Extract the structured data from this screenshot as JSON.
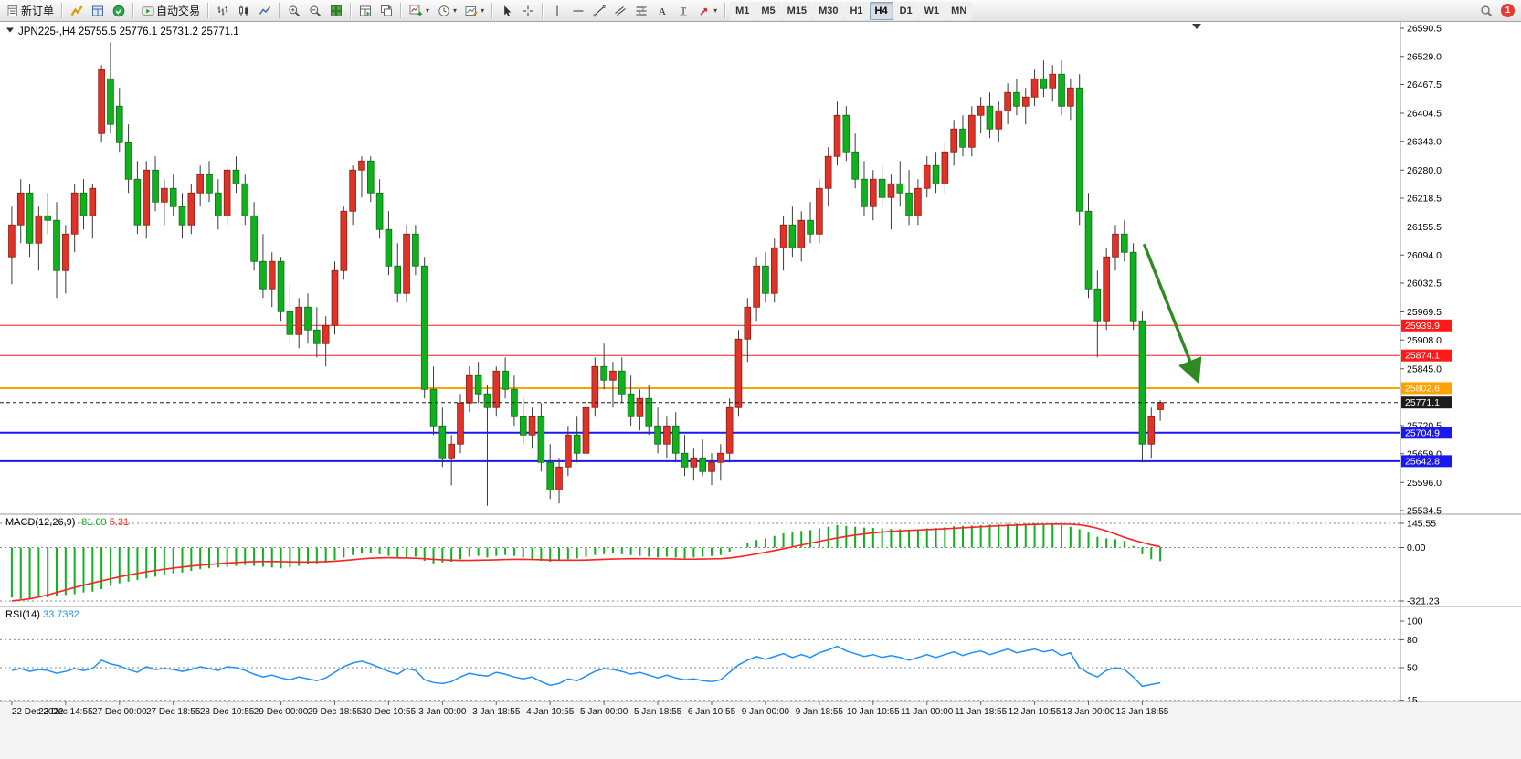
{
  "toolbar": {
    "new_order_label": "新订单",
    "autotrading_label": "自动交易",
    "timeframes": [
      "M1",
      "M5",
      "M15",
      "M30",
      "H1",
      "H4",
      "D1",
      "W1",
      "MN"
    ],
    "active_timeframe": "H4",
    "notification_count": "1",
    "icons": [
      "new-order",
      "market-watch",
      "data-window",
      "community",
      "autotrading",
      "bar-chart",
      "candlestick-chart",
      "line-chart",
      "zoom-in",
      "zoom-out",
      "tile-windows",
      "arrange-windows",
      "cascade-windows",
      "add-indicator",
      "periods",
      "templates",
      "cursor",
      "crosshair",
      "vertical-line",
      "horizontal-line",
      "trendline",
      "equidistant-channel",
      "fibonacci",
      "text",
      "text-label",
      "arrows",
      "search",
      "notification"
    ]
  },
  "chart_data": {
    "type": "candlestick+indicators",
    "symbol": "JPN225-",
    "period": "H4",
    "title_text": "JPN225-,H4 25755.5 25776.1 25731.2 25771.1",
    "ohlc": {
      "open": "25755.5",
      "high": "25776.1",
      "low": "25731.2",
      "close": "25771.1"
    },
    "colors": {
      "bull": "#dd3328",
      "bear": "#11b01e",
      "wick": "#3a3a3a",
      "macd_hist": "#11b01e",
      "macd_signal": "#ff2121",
      "rsi_line": "#1e90ff",
      "current_price": "#1c1c1c"
    },
    "price_axis": {
      "max": 26590.5,
      "min": 25534.5,
      "labels": [
        "26590.5",
        "26529.0",
        "26467.5",
        "26404.5",
        "26343.0",
        "26280.0",
        "26218.5",
        "26155.5",
        "26094.0",
        "26032.5",
        "25969.5",
        "25908.0",
        "25845.0",
        "25720.5",
        "25659.0",
        "25596.0",
        "25534.5"
      ]
    },
    "hlines": [
      {
        "price": 25939.9,
        "label": "25939.9",
        "color": "#ff1a1a",
        "width": 1
      },
      {
        "price": 25874.1,
        "label": "25874.1",
        "color": "#ff1a1a",
        "width": 1
      },
      {
        "price": 25802.6,
        "label": "25802.6",
        "color": "#ffa200",
        "width": 2
      },
      {
        "price": 25704.9,
        "label": "25704.9",
        "color": "#1a1aee",
        "width": 2
      },
      {
        "price": 25642.8,
        "label": "25642.8",
        "color": "#1a1aee",
        "width": 2
      }
    ],
    "current_price": {
      "value": 25771.1,
      "label": "25771.1"
    },
    "arrow": {
      "from_bar": 126.2,
      "from_price": 26118,
      "to_bar": 132.2,
      "to_price": 25818,
      "color": "#2e8b22"
    },
    "candles": [
      [
        26090,
        26200,
        26030,
        26160
      ],
      [
        26160,
        26260,
        26120,
        26230
      ],
      [
        26230,
        26250,
        26090,
        26120
      ],
      [
        26120,
        26200,
        26060,
        26180
      ],
      [
        26180,
        26230,
        26140,
        26170
      ],
      [
        26170,
        26210,
        26000,
        26060
      ],
      [
        26060,
        26160,
        26010,
        26140
      ],
      [
        26140,
        26250,
        26100,
        26230
      ],
      [
        26230,
        26260,
        26150,
        26180
      ],
      [
        26180,
        26250,
        26130,
        26240
      ],
      [
        26360,
        26510,
        26340,
        26500
      ],
      [
        26480,
        26560,
        26360,
        26380
      ],
      [
        26420,
        26460,
        26320,
        26340
      ],
      [
        26340,
        26380,
        26230,
        26260
      ],
      [
        26260,
        26300,
        26140,
        26160
      ],
      [
        26160,
        26300,
        26130,
        26280
      ],
      [
        26280,
        26310,
        26190,
        26210
      ],
      [
        26210,
        26260,
        26160,
        26240
      ],
      [
        26240,
        26270,
        26180,
        26200
      ],
      [
        26200,
        26230,
        26130,
        26160
      ],
      [
        26160,
        26250,
        26140,
        26230
      ],
      [
        26230,
        26290,
        26200,
        26270
      ],
      [
        26270,
        26300,
        26210,
        26230
      ],
      [
        26230,
        26260,
        26150,
        26180
      ],
      [
        26180,
        26290,
        26160,
        26280
      ],
      [
        26280,
        26310,
        26230,
        26250
      ],
      [
        26250,
        26270,
        26160,
        26180
      ],
      [
        26180,
        26210,
        26060,
        26080
      ],
      [
        26080,
        26140,
        26000,
        26020
      ],
      [
        26020,
        26100,
        25980,
        26080
      ],
      [
        26080,
        26090,
        25950,
        25970
      ],
      [
        25970,
        26030,
        25900,
        25920
      ],
      [
        25920,
        26000,
        25890,
        25980
      ],
      [
        25980,
        26010,
        25900,
        25930
      ],
      [
        25930,
        25980,
        25870,
        25900
      ],
      [
        25900,
        25960,
        25850,
        25940
      ],
      [
        25940,
        26080,
        25920,
        26060
      ],
      [
        26060,
        26200,
        26040,
        26190
      ],
      [
        26190,
        26290,
        26160,
        26280
      ],
      [
        26280,
        26310,
        26220,
        26300
      ],
      [
        26300,
        26310,
        26210,
        26230
      ],
      [
        26230,
        26260,
        26130,
        26150
      ],
      [
        26150,
        26190,
        26050,
        26070
      ],
      [
        26070,
        26120,
        25990,
        26010
      ],
      [
        26010,
        26160,
        25990,
        26140
      ],
      [
        26140,
        26160,
        26050,
        26070
      ],
      [
        26070,
        26090,
        25780,
        25800
      ],
      [
        25800,
        25850,
        25700,
        25720
      ],
      [
        25720,
        25760,
        25630,
        25650
      ],
      [
        25650,
        25700,
        25590,
        25680
      ],
      [
        25680,
        25790,
        25660,
        25770
      ],
      [
        25770,
        25850,
        25750,
        25830
      ],
      [
        25830,
        25860,
        25770,
        25790
      ],
      [
        25790,
        25810,
        25545,
        25760
      ],
      [
        25760,
        25850,
        25740,
        25840
      ],
      [
        25840,
        25870,
        25780,
        25800
      ],
      [
        25800,
        25830,
        25720,
        25740
      ],
      [
        25740,
        25780,
        25680,
        25700
      ],
      [
        25700,
        25760,
        25670,
        25740
      ],
      [
        25740,
        25770,
        25620,
        25640
      ],
      [
        25640,
        25680,
        25560,
        25580
      ],
      [
        25580,
        25650,
        25550,
        25630
      ],
      [
        25630,
        25720,
        25610,
        25700
      ],
      [
        25700,
        25740,
        25640,
        25660
      ],
      [
        25660,
        25780,
        25650,
        25760
      ],
      [
        25760,
        25870,
        25740,
        25850
      ],
      [
        25850,
        25900,
        25800,
        25820
      ],
      [
        25820,
        25860,
        25760,
        25840
      ],
      [
        25840,
        25870,
        25770,
        25790
      ],
      [
        25790,
        25830,
        25720,
        25740
      ],
      [
        25740,
        25800,
        25710,
        25780
      ],
      [
        25780,
        25810,
        25700,
        25720
      ],
      [
        25720,
        25760,
        25660,
        25680
      ],
      [
        25680,
        25740,
        25650,
        25720
      ],
      [
        25720,
        25750,
        25640,
        25660
      ],
      [
        25660,
        25700,
        25610,
        25630
      ],
      [
        25630,
        25670,
        25600,
        25650
      ],
      [
        25650,
        25690,
        25610,
        25620
      ],
      [
        25620,
        25660,
        25590,
        25640
      ],
      [
        25640,
        25680,
        25600,
        25660
      ],
      [
        25660,
        25780,
        25640,
        25760
      ],
      [
        25760,
        25930,
        25740,
        25910
      ],
      [
        25910,
        26000,
        25860,
        25980
      ],
      [
        25980,
        26090,
        25950,
        26070
      ],
      [
        26070,
        26100,
        25990,
        26010
      ],
      [
        26010,
        26130,
        25990,
        26110
      ],
      [
        26110,
        26180,
        26060,
        26160
      ],
      [
        26160,
        26200,
        26090,
        26110
      ],
      [
        26110,
        26190,
        26080,
        26170
      ],
      [
        26170,
        26210,
        26120,
        26140
      ],
      [
        26140,
        26260,
        26120,
        26240
      ],
      [
        26240,
        26330,
        26200,
        26310
      ],
      [
        26310,
        26430,
        26290,
        26400
      ],
      [
        26400,
        26420,
        26300,
        26320
      ],
      [
        26320,
        26360,
        26240,
        26260
      ],
      [
        26260,
        26300,
        26180,
        26200
      ],
      [
        26200,
        26280,
        26170,
        26260
      ],
      [
        26260,
        26290,
        26200,
        26220
      ],
      [
        26220,
        26270,
        26150,
        26250
      ],
      [
        26250,
        26300,
        26200,
        26230
      ],
      [
        26230,
        26280,
        26160,
        26180
      ],
      [
        26180,
        26260,
        26160,
        26240
      ],
      [
        26240,
        26310,
        26220,
        26290
      ],
      [
        26290,
        26320,
        26230,
        26250
      ],
      [
        26250,
        26340,
        26230,
        26320
      ],
      [
        26320,
        26390,
        26290,
        26370
      ],
      [
        26370,
        26400,
        26310,
        26330
      ],
      [
        26330,
        26420,
        26310,
        26400
      ],
      [
        26400,
        26440,
        26360,
        26420
      ],
      [
        26420,
        26450,
        26350,
        26370
      ],
      [
        26370,
        26430,
        26340,
        26410
      ],
      [
        26410,
        26470,
        26380,
        26450
      ],
      [
        26450,
        26480,
        26400,
        26420
      ],
      [
        26420,
        26460,
        26380,
        26440
      ],
      [
        26440,
        26500,
        26420,
        26480
      ],
      [
        26480,
        26520,
        26440,
        26460
      ],
      [
        26460,
        26510,
        26430,
        26490
      ],
      [
        26490,
        26520,
        26400,
        26420
      ],
      [
        26420,
        26480,
        26390,
        26460
      ],
      [
        26460,
        26490,
        26160,
        26190
      ],
      [
        26190,
        26230,
        26000,
        26020
      ],
      [
        26020,
        26060,
        25870,
        25950
      ],
      [
        25950,
        26110,
        25930,
        26090
      ],
      [
        26090,
        26160,
        26060,
        26140
      ],
      [
        26140,
        26170,
        26080,
        26100
      ],
      [
        26100,
        26120,
        25930,
        25950
      ],
      [
        25950,
        25970,
        25640,
        25680
      ],
      [
        25680,
        25760,
        25650,
        25740
      ],
      [
        25755.5,
        25776.1,
        25731.2,
        25771.1
      ]
    ],
    "macd": {
      "name": "MACD(12,26,9)",
      "value_main": "-81.09",
      "value_signal": "5.31",
      "axis_max": 145.55,
      "axis_min": -321.23,
      "axis_labels": [
        "145.55",
        "0.00",
        "-321.23"
      ],
      "hist": [
        -300,
        -310,
        -305,
        -295,
        -300,
        -290,
        -285,
        -280,
        -270,
        -265,
        -250,
        -230,
        -215,
        -205,
        -195,
        -185,
        -175,
        -165,
        -155,
        -150,
        -140,
        -130,
        -125,
        -120,
        -115,
        -110,
        -105,
        -110,
        -115,
        -120,
        -125,
        -120,
        -110,
        -100,
        -95,
        -90,
        -75,
        -60,
        -45,
        -35,
        -30,
        -40,
        -50,
        -65,
        -60,
        -55,
        -80,
        -95,
        -90,
        -85,
        -70,
        -55,
        -50,
        -60,
        -50,
        -45,
        -50,
        -60,
        -70,
        -80,
        -85,
        -80,
        -70,
        -65,
        -55,
        -45,
        -40,
        -35,
        -40,
        -45,
        -50,
        -55,
        -60,
        -55,
        -60,
        -65,
        -60,
        -55,
        -50,
        -45,
        -25,
        0,
        25,
        45,
        55,
        70,
        85,
        90,
        100,
        105,
        115,
        125,
        135,
        130,
        125,
        120,
        118,
        115,
        112,
        110,
        108,
        110,
        115,
        118,
        122,
        128,
        130,
        132,
        135,
        138,
        140,
        142,
        144,
        145,
        145,
        143,
        140,
        135,
        125,
        110,
        90,
        65,
        55,
        50,
        40,
        10,
        -40,
        -70,
        -81.09
      ],
      "signal": [
        -320,
        -315,
        -308,
        -298,
        -285,
        -270,
        -255,
        -240,
        -226,
        -213,
        -200,
        -188,
        -176,
        -165,
        -155,
        -146,
        -138,
        -130,
        -123,
        -117,
        -111,
        -106,
        -101,
        -97,
        -93,
        -90,
        -87,
        -85,
        -84,
        -84,
        -85,
        -86,
        -87,
        -87,
        -86,
        -85,
        -82,
        -78,
        -73,
        -68,
        -64,
        -62,
        -61,
        -62,
        -63,
        -64,
        -67,
        -71,
        -74,
        -76,
        -77,
        -77,
        -76,
        -75,
        -74,
        -72,
        -71,
        -71,
        -72,
        -73,
        -75,
        -76,
        -76,
        -76,
        -75,
        -73,
        -71,
        -69,
        -68,
        -67,
        -67,
        -67,
        -68,
        -68,
        -69,
        -70,
        -70,
        -69,
        -68,
        -67,
        -63,
        -56,
        -48,
        -38,
        -28,
        -18,
        -7,
        4,
        15,
        26,
        37,
        48,
        58,
        67,
        75,
        82,
        88,
        93,
        97,
        100,
        103,
        105,
        108,
        110,
        113,
        116,
        119,
        122,
        125,
        128,
        131,
        133,
        135,
        137,
        139,
        140,
        141,
        141,
        140,
        137,
        128,
        116,
        100,
        82,
        62,
        45,
        30,
        16,
        5.31
      ]
    },
    "rsi": {
      "name": "RSI(14)",
      "value": "33.7382",
      "axis_labels": [
        "100",
        "80",
        "50",
        "15"
      ],
      "levels": [
        80,
        50,
        15
      ],
      "values": [
        47,
        49,
        46,
        48,
        47,
        44,
        46,
        49,
        47,
        49,
        58,
        54,
        52,
        48,
        45,
        51,
        48,
        49,
        48,
        46,
        48,
        51,
        49,
        47,
        51,
        50,
        47,
        43,
        40,
        42,
        39,
        37,
        40,
        38,
        36,
        39,
        45,
        51,
        55,
        57,
        54,
        50,
        46,
        43,
        49,
        47,
        37,
        34,
        33,
        35,
        40,
        44,
        42,
        41,
        45,
        43,
        40,
        38,
        40,
        35,
        31,
        33,
        38,
        36,
        41,
        46,
        49,
        48,
        46,
        43,
        45,
        42,
        39,
        42,
        39,
        37,
        38,
        36,
        35,
        37,
        45,
        53,
        58,
        62,
        59,
        62,
        65,
        61,
        64,
        61,
        66,
        69,
        73,
        68,
        65,
        62,
        64,
        61,
        63,
        61,
        58,
        61,
        64,
        61,
        64,
        67,
        63,
        66,
        68,
        64,
        67,
        70,
        66,
        68,
        70,
        67,
        69,
        63,
        66,
        50,
        44,
        40,
        47,
        50,
        48,
        40,
        30,
        32,
        33.74
      ]
    },
    "time_labels": [
      "22 Dec 2022",
      "23 Dec 14:55",
      "27 Dec 00:00",
      "27 Dec 18:55",
      "28 Dec 10:55",
      "29 Dec 00:00",
      "29 Dec 18:55",
      "30 Dec 10:55",
      "3 Jan 00:00",
      "3 Jan 18:55",
      "4 Jan 10:55",
      "5 Jan 00:00",
      "5 Jan 18:55",
      "6 Jan 10:55",
      "9 Jan 00:00",
      "9 Jan 18:55",
      "10 Jan 10:55",
      "11 Jan 00:00",
      "11 Jan 18:55",
      "12 Jan 10:55",
      "13 Jan 00:00",
      "13 Jan 18:55"
    ]
  }
}
